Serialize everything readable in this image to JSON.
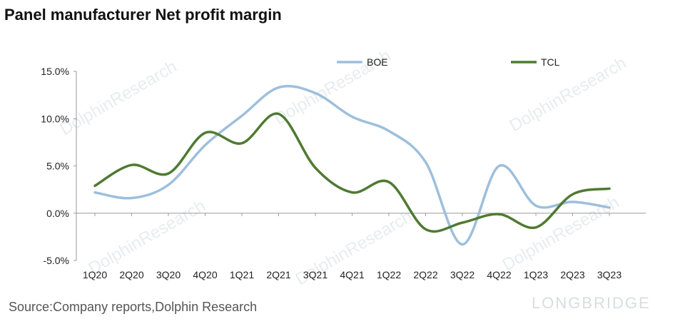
{
  "chart_data": {
    "type": "line",
    "title": "Panel manufacturer Net profit margin",
    "categories": [
      "1Q20",
      "2Q20",
      "3Q20",
      "4Q20",
      "1Q21",
      "2Q21",
      "3Q21",
      "4Q21",
      "1Q22",
      "2Q22",
      "3Q22",
      "4Q22",
      "1Q23",
      "2Q23",
      "3Q23"
    ],
    "series": [
      {
        "name": "BOE",
        "color": "#9dbfdc",
        "values": [
          2.2,
          1.6,
          3.0,
          7.2,
          10.3,
          13.3,
          12.7,
          10.2,
          8.7,
          5.4,
          -3.3,
          5.0,
          0.8,
          1.2,
          0.6
        ]
      },
      {
        "name": "TCL",
        "color": "#4f7a32",
        "values": [
          2.9,
          5.1,
          4.2,
          8.5,
          7.4,
          10.5,
          4.8,
          2.2,
          3.3,
          -1.7,
          -1.0,
          -0.1,
          -1.5,
          2.0,
          2.6
        ]
      }
    ],
    "yticks": [
      "15.0%",
      "10.0%",
      "5.0%",
      "0.0%",
      "-5.0%"
    ],
    "ylim": [
      -5,
      15
    ],
    "legend_position": "top-right",
    "grid": false
  },
  "source": "Source:Company reports,Dolphin Research",
  "watermark": {
    "text": "DolphinResearch",
    "brand": "LONGBRIDGE"
  }
}
